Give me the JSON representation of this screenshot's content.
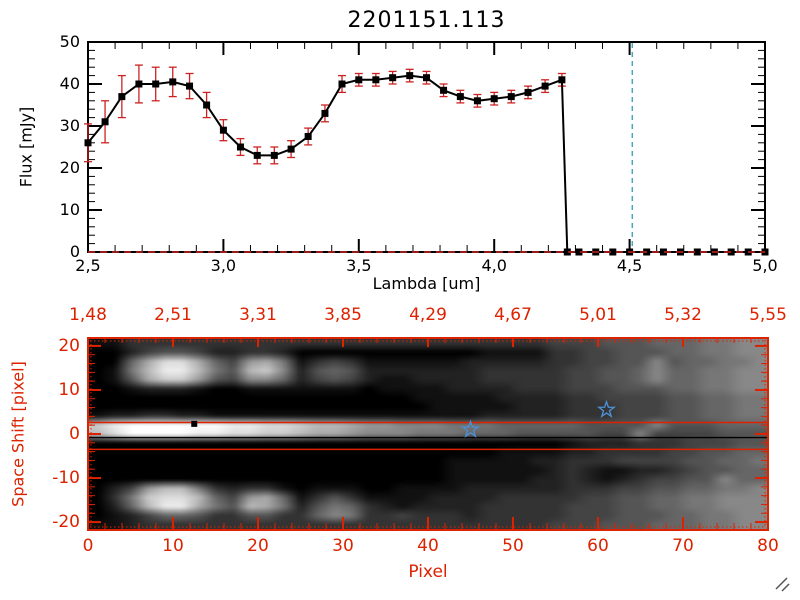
{
  "title": "2201151.113",
  "chart_data": [
    {
      "type": "line",
      "name": "spectrum-plot",
      "title": "2201151.113",
      "xlabel": "Lambda [um]",
      "ylabel": "Flux [mJy]",
      "xlim": [
        2.5,
        5.0
      ],
      "ylim": [
        0,
        50
      ],
      "grid": false,
      "xtick_values": [
        2.5,
        3.0,
        3.5,
        4.0,
        4.5,
        5.0
      ],
      "xtick_labels": [
        "2,5",
        "3,0",
        "3,5",
        "4,0",
        "4,5",
        "5,0"
      ],
      "ytick_values": [
        0,
        10,
        20,
        30,
        40,
        50
      ],
      "ytick_labels": [
        "0",
        "10",
        "20",
        "30",
        "40",
        "50"
      ],
      "line_color": "#000000",
      "marker": "filled-square",
      "marker_color": "#000000",
      "error_color": "#cc2222",
      "vline": {
        "x": 4.51,
        "color": "#4aa8b8",
        "style": "dashed"
      },
      "hline": {
        "y": 0,
        "color": "#cc2222",
        "style": "dashed"
      },
      "series": [
        {
          "name": "spectrum",
          "x": [
            2.5,
            2.563,
            2.625,
            2.688,
            2.75,
            2.813,
            2.875,
            2.938,
            3.0,
            3.063,
            3.125,
            3.188,
            3.25,
            3.313,
            3.375,
            3.438,
            3.5,
            3.563,
            3.625,
            3.688,
            3.75,
            3.813,
            3.875,
            3.938,
            4.0,
            4.063,
            4.125,
            4.188,
            4.25,
            4.27,
            4.313,
            4.375,
            4.438,
            4.5,
            4.563,
            4.625,
            4.688,
            4.75,
            4.813,
            4.875,
            4.938,
            5.0
          ],
          "y": [
            26,
            31,
            37,
            40,
            40,
            40.5,
            39.5,
            35,
            29,
            25,
            23,
            23,
            24.5,
            27.5,
            33,
            40,
            41,
            41,
            41.5,
            42,
            41.5,
            38.5,
            37,
            36,
            36.5,
            37,
            38,
            39.5,
            41,
            0,
            0,
            0,
            0,
            0,
            0,
            0,
            0,
            0,
            0,
            0,
            0,
            0
          ],
          "err": [
            4.5,
            5,
            5,
            4.5,
            4,
            3.5,
            3,
            3,
            2.5,
            2,
            2,
            2,
            2,
            2,
            2,
            2,
            1.5,
            1.5,
            1.5,
            1.5,
            1.5,
            1.5,
            1.5,
            1.5,
            1.5,
            1.5,
            1.5,
            1.5,
            1.5,
            0,
            0,
            0,
            0,
            0,
            0,
            0,
            0,
            0,
            0,
            0,
            0,
            0
          ]
        }
      ]
    },
    {
      "type": "heatmap",
      "name": "spectral-image",
      "xlabel": "Pixel",
      "ylabel": "Space Shift [pixel]",
      "xlim": [
        0,
        80
      ],
      "ylim": [
        -21.8,
        21.8
      ],
      "axis_color": "#dd2200",
      "xtick_values": [
        0,
        10,
        20,
        30,
        40,
        50,
        60,
        70,
        80
      ],
      "xtick_labels": [
        "0",
        "10",
        "20",
        "30",
        "40",
        "50",
        "60",
        "70",
        "80"
      ],
      "ytick_values": [
        20,
        10,
        0,
        -10,
        -20
      ],
      "ytick_labels": [
        "20",
        "10",
        "0",
        "-10",
        "-20"
      ],
      "top_axis_labels": [
        "1,48",
        "2,51",
        "3,31",
        "3,85",
        "4,29",
        "4,67",
        "5,01",
        "5,32",
        "5,55"
      ],
      "grid_rows": [
        "1133333333333333333333333334445556667788",
        "0024554223320000000000011113344555667788",
        "006adda649a7134311111122222334455 5667788",
        "017beeb75bc8256522222223333344556 6677889",
        "015acc954886245421122223333344556 6677889",
        "0012221001111111011112222333444555667788",
        "0000000000000000000111112222334444556677",
        "0000000000000000000011111222333444556677",
        "1223322111111111111111122222333444556677",
        "ceffffffeeddcbba99888777666665555 5556667",
        "bdffffeeddccbaa98887776665555544 44445556",
        "0000000000000000000000000000122233344455",
        "0000000000000000000000001111223333445566",
        "0000000000000000000001111122333444455667",
        "0000000000000000000001111112321122345566",
        "0000000000000000000001111122321234455 66",
        "0249bb732331011100111122222233344556677 ",
        "037cddb649a6135311112222333334455667788 ",
        "026beea75ba7257632122223333344455667788 ",
        "0124665335533687334333233333444555667788",
        "1123333333333333333333333334445556667788"
      ],
      "overlays": {
        "aperture_lines_shift": [
          2.6,
          -3.5
        ],
        "aperture_color": "#dd2200",
        "trace_line": {
          "shift": -0.8,
          "color": "#000000"
        },
        "stars": [
          {
            "x": 45,
            "shift": 1.0
          },
          {
            "x": 61,
            "shift": 5.5
          }
        ],
        "star_color": "#4d8fd1",
        "square_marker": {
          "x": 12.5,
          "shift": 2.3,
          "color": "#000000"
        }
      }
    }
  ]
}
